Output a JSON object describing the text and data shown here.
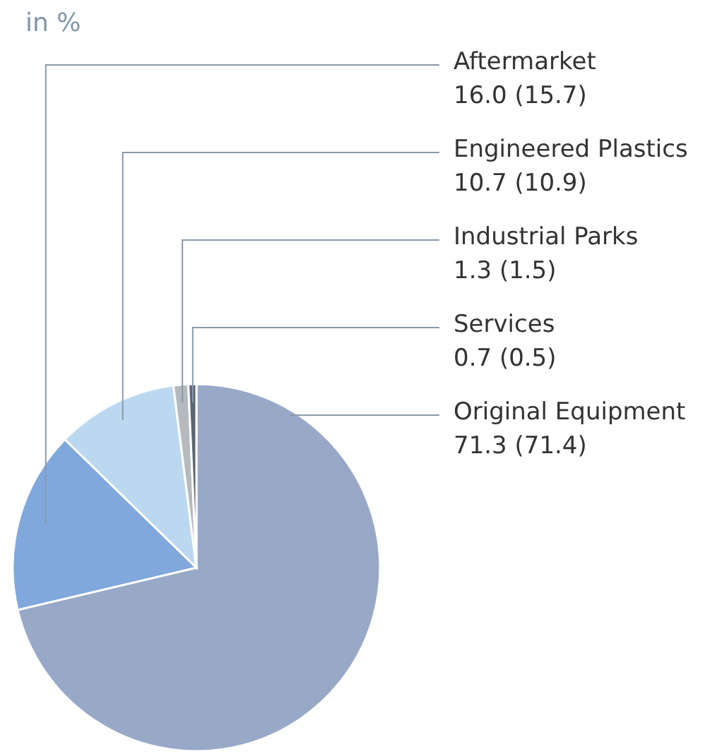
{
  "chart_data": {
    "type": "pie",
    "title": "in %",
    "categories": [
      "Original Equipment",
      "Aftermarket",
      "Engineered Plastics",
      "Industrial Parks",
      "Services"
    ],
    "values": [
      71.3,
      16.0,
      10.7,
      1.3,
      0.7
    ],
    "colors": [
      "#98a9c8",
      "#80a8dc",
      "#bcd8f0",
      "#b5babf",
      "#5c6573"
    ],
    "value_labels": [
      "71.3 (71.4)",
      "16.0 (15.7)",
      "10.7 (10.9)",
      "1.3 (1.5)",
      "0.7 (0.5)"
    ]
  }
}
